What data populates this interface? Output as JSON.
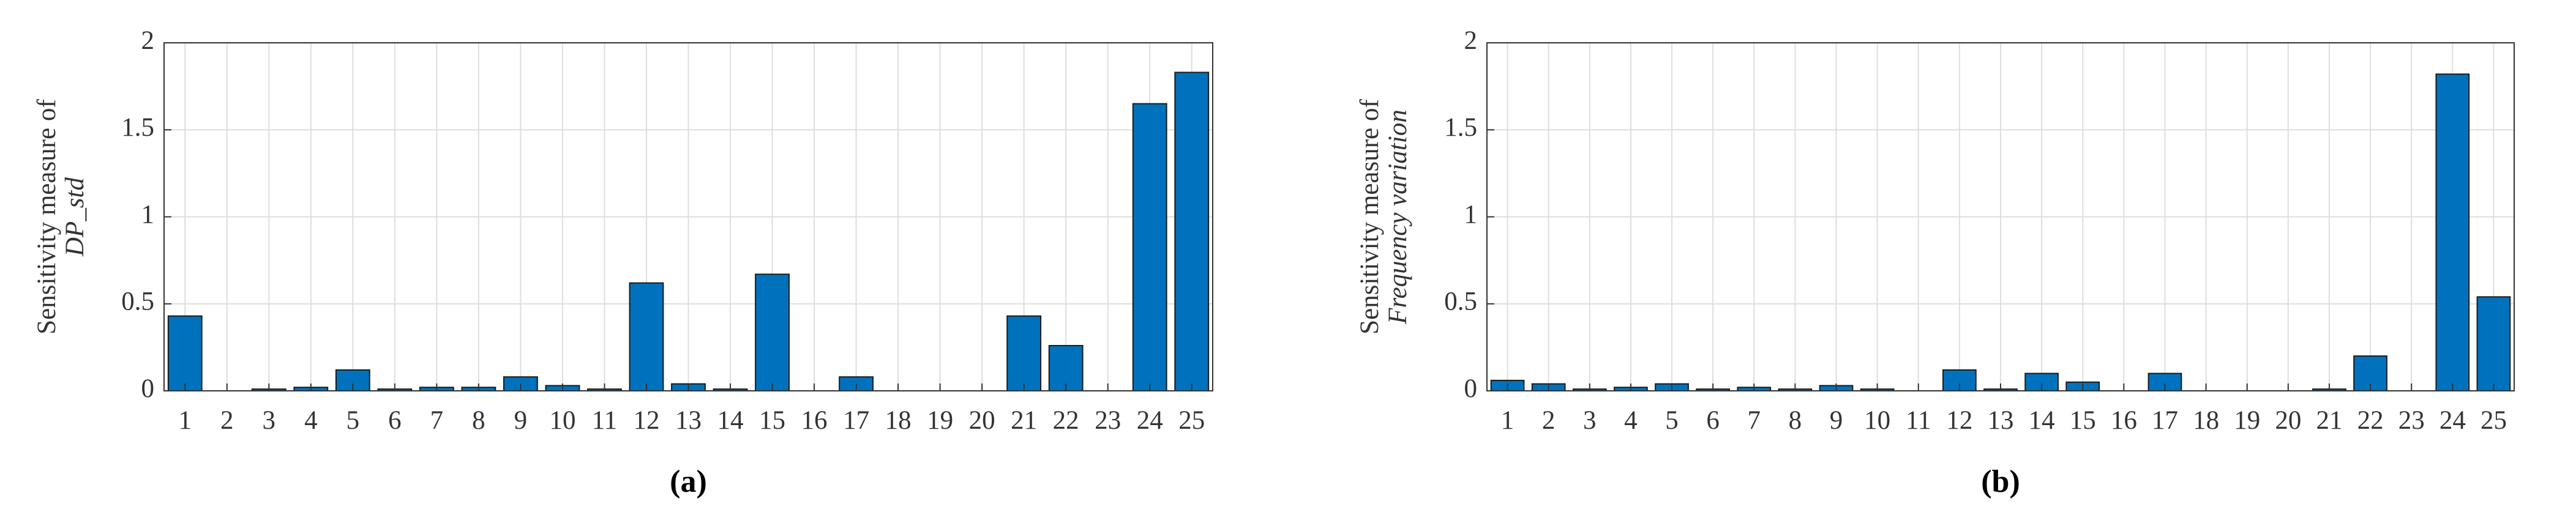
{
  "chart_data": [
    {
      "type": "bar",
      "caption": "(a)",
      "ylabel": [
        "Sensitivity measure of",
        "DP_std"
      ],
      "categories": [
        "1",
        "2",
        "3",
        "4",
        "5",
        "6",
        "7",
        "8",
        "9",
        "10",
        "11",
        "12",
        "13",
        "14",
        "15",
        "16",
        "17",
        "18",
        "19",
        "20",
        "21",
        "22",
        "23",
        "24",
        "25"
      ],
      "values": [
        0.43,
        0,
        0.01,
        0.02,
        0.12,
        0.01,
        0.02,
        0.02,
        0.08,
        0.03,
        0.01,
        0.62,
        0.04,
        0.01,
        0.67,
        0,
        0.08,
        0,
        0,
        0,
        0.43,
        0.26,
        0,
        1.65,
        1.83
      ],
      "color": "#0072bd",
      "ylim": [
        0,
        2
      ],
      "yticks": [
        0,
        0.5,
        1,
        1.5,
        2
      ],
      "grid": true
    },
    {
      "type": "bar",
      "caption": "(b)",
      "ylabel": [
        "Sensitivity measure of",
        "Frequency variation"
      ],
      "categories": [
        "1",
        "2",
        "3",
        "4",
        "5",
        "6",
        "7",
        "8",
        "9",
        "10",
        "11",
        "12",
        "13",
        "14",
        "15",
        "16",
        "17",
        "18",
        "19",
        "20",
        "21",
        "22",
        "23",
        "24",
        "25"
      ],
      "values": [
        0.06,
        0.04,
        0.01,
        0.02,
        0.04,
        0.01,
        0.02,
        0.01,
        0.03,
        0.01,
        0,
        0.12,
        0.01,
        0.1,
        0.05,
        0,
        0.1,
        0,
        0,
        0,
        0.01,
        0.2,
        0,
        1.82,
        0.54
      ],
      "color": "#0072bd",
      "ylim": [
        0,
        2
      ],
      "yticks": [
        0,
        0.5,
        1,
        1.5,
        2
      ],
      "grid": true
    }
  ]
}
